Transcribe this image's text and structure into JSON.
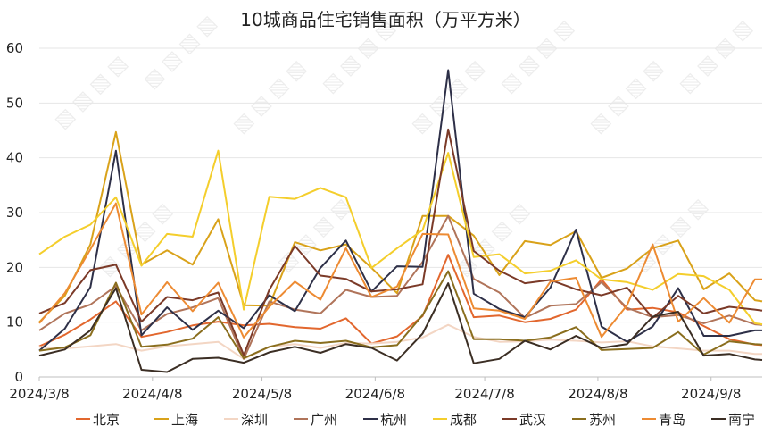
{
  "chart_data": {
    "type": "line",
    "title": "10城商品住宅销售面积（万平方米）",
    "xlabel": "",
    "ylabel": "",
    "ylim": [
      0,
      60
    ],
    "yticks": [
      0,
      10,
      20,
      30,
      40,
      50,
      60
    ],
    "xlim": [
      "2024-03-08",
      "2024-09-22"
    ],
    "xticks": [
      "2024/3/8",
      "2024/4/8",
      "2024/5/8",
      "2024/6/8",
      "2024/7/8",
      "2024/8/8",
      "2024/9/8"
    ],
    "legend_position": "bottom",
    "grid": "horizontal",
    "x": [
      "2024-03-08",
      "2024-03-15",
      "2024-03-22",
      "2024-03-29",
      "2024-04-05",
      "2024-04-12",
      "2024-04-19",
      "2024-04-26",
      "2024-05-03",
      "2024-05-10",
      "2024-05-17",
      "2024-05-24",
      "2024-05-31",
      "2024-06-07",
      "2024-06-14",
      "2024-06-21",
      "2024-06-28",
      "2024-07-05",
      "2024-07-12",
      "2024-07-19",
      "2024-07-26",
      "2024-08-02",
      "2024-08-09",
      "2024-08-16",
      "2024-08-23",
      "2024-08-30",
      "2024-09-06",
      "2024-09-13",
      "2024-09-20",
      "2024-09-22"
    ],
    "series": [
      {
        "name": "北京",
        "color": "#E2672E",
        "values": [
          5.6,
          7.7,
          10.5,
          13.8,
          7.3,
          8.2,
          9.4,
          10.1,
          9.4,
          9.7,
          9.1,
          8.8,
          10.7,
          6.1,
          7.4,
          11.1,
          22.3,
          10.9,
          11.2,
          10,
          10.6,
          12.3,
          17.8,
          12.3,
          12.6,
          11.8,
          9.3,
          6.9,
          5.9,
          5.8
        ]
      },
      {
        "name": "上海",
        "color": "#D9A21A",
        "values": [
          10,
          14.8,
          24.2,
          44.7,
          20.5,
          23.1,
          20.5,
          28.8,
          13.1,
          13,
          24.6,
          23.1,
          24.2,
          19.9,
          15.3,
          29.4,
          29.4,
          25.8,
          18.6,
          24.8,
          24.1,
          26.6,
          18.1,
          19.8,
          23.5,
          24.9,
          16,
          18.9,
          14,
          13.8
        ]
      },
      {
        "name": "深圳",
        "color": "#F3D6C4",
        "values": [
          5.5,
          5.2,
          5.6,
          6,
          4.8,
          5.6,
          6,
          6.4,
          3.3,
          5.5,
          6,
          5.3,
          6.2,
          6.1,
          6.4,
          7.2,
          9.5,
          7.3,
          6.4,
          6.5,
          6.8,
          6.6,
          6.3,
          6.5,
          5.6,
          5.2,
          4.8,
          4.8,
          4.2,
          4.2
        ]
      },
      {
        "name": "广州",
        "color": "#B0745A",
        "values": [
          8.5,
          11.6,
          13.2,
          16.6,
          8.5,
          11.5,
          12.7,
          14.4,
          3.3,
          13.8,
          12.3,
          11.6,
          15.9,
          14.6,
          14.8,
          21,
          29.4,
          17.9,
          15.4,
          10.8,
          13,
          13.3,
          17.3,
          12.6,
          10.9,
          11.3,
          9.8,
          11.2,
          9.6,
          9.5
        ]
      },
      {
        "name": "杭州",
        "color": "#2E3048",
        "values": [
          4.8,
          8.8,
          16.4,
          41.3,
          7.6,
          12.7,
          8.6,
          12.1,
          8.9,
          14.9,
          12,
          19.9,
          24.9,
          15.6,
          20.2,
          20.1,
          56,
          15.2,
          12.4,
          10.9,
          16.3,
          26.9,
          9.2,
          6.4,
          9.2,
          16.2,
          7.5,
          7.5,
          8.5,
          8.5
        ]
      },
      {
        "name": "成都",
        "color": "#F4CE2C",
        "values": [
          22.4,
          25.6,
          27.8,
          32.8,
          20.3,
          26.1,
          25.6,
          41.3,
          12.3,
          32.9,
          32.5,
          34.5,
          32.8,
          19.9,
          23.5,
          26.8,
          40.9,
          21.9,
          22.4,
          18.9,
          19.4,
          21.3,
          17.8,
          17.3,
          15.9,
          18.8,
          18.4,
          15.9,
          9.8,
          9.6
        ]
      },
      {
        "name": "武汉",
        "color": "#7B3A28",
        "values": [
          11.6,
          13.5,
          19.5,
          20.5,
          10.1,
          14.6,
          14,
          15.4,
          4,
          15.9,
          23.9,
          18.5,
          17.9,
          15.6,
          16,
          16.9,
          45.2,
          23,
          19.4,
          17.1,
          17.7,
          16,
          14.9,
          16.3,
          10.8,
          14.8,
          11.6,
          12.8,
          12.3,
          12.1
        ]
      },
      {
        "name": "苏州",
        "color": "#8A6E1E",
        "values": [
          4.8,
          5.4,
          7.6,
          17.2,
          5.5,
          5.9,
          7,
          10.9,
          3.4,
          5.5,
          6.6,
          6.2,
          6.6,
          5.4,
          5.8,
          11.3,
          19.3,
          6.9,
          6.9,
          6.6,
          7.2,
          9.1,
          4.9,
          5.1,
          5.3,
          8.2,
          4.1,
          6.5,
          6,
          5.9
        ]
      },
      {
        "name": "青岛",
        "color": "#ED8B33",
        "values": [
          9.8,
          15.3,
          23.3,
          31.7,
          11.4,
          17.3,
          12,
          17.2,
          7.2,
          12.8,
          17.4,
          14.1,
          23.5,
          14.6,
          16.5,
          26.1,
          26,
          12.5,
          12.1,
          10.6,
          17.4,
          18.1,
          7.3,
          13.1,
          24.2,
          10.1,
          14.4,
          9.9,
          17.8,
          17.8
        ]
      },
      {
        "name": "南宁",
        "color": "#3B2E24",
        "values": [
          3.9,
          5,
          8.5,
          16.2,
          1.3,
          0.9,
          3.3,
          3.5,
          2.6,
          4.5,
          5.5,
          4.4,
          6,
          5.3,
          3,
          7.9,
          17.1,
          2.5,
          3.3,
          6.6,
          5,
          7.5,
          5.3,
          6,
          11,
          11.9,
          3.9,
          4.2,
          3.2,
          3.1
        ]
      }
    ]
  }
}
